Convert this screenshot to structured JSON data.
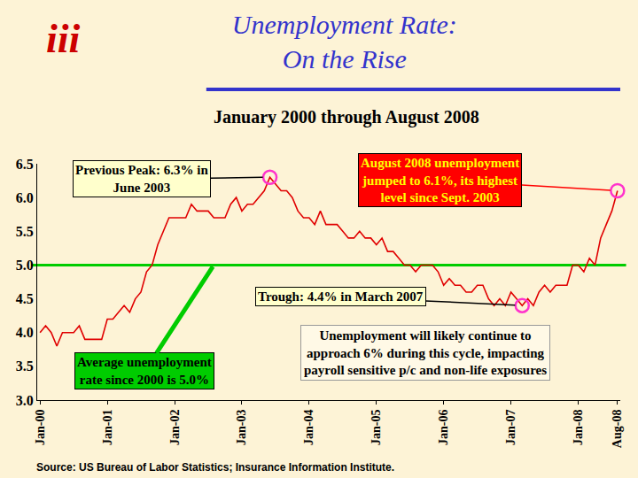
{
  "chart_data": {
    "type": "line",
    "title": [
      "Unemployment Rate:",
      "On the Rise"
    ],
    "subtitle": "January 2000 through August 2008",
    "logo": "iii",
    "source": "Source: US Bureau of Labor Statistics; Insurance Information Institute.",
    "color": "#e00000",
    "grid": false,
    "categories": [
      "Jan-00",
      null,
      null,
      null,
      null,
      null,
      null,
      null,
      null,
      null,
      null,
      null,
      "Jan-01",
      null,
      null,
      null,
      null,
      null,
      null,
      null,
      null,
      null,
      null,
      null,
      "Jan-02",
      null,
      null,
      null,
      null,
      null,
      null,
      null,
      null,
      null,
      null,
      null,
      "Jan-03",
      null,
      null,
      null,
      null,
      null,
      null,
      null,
      null,
      null,
      null,
      null,
      "Jan-04",
      null,
      null,
      null,
      null,
      null,
      null,
      null,
      null,
      null,
      null,
      null,
      "Jan-05",
      null,
      null,
      null,
      null,
      null,
      null,
      null,
      null,
      null,
      null,
      null,
      "Jan-06",
      null,
      null,
      null,
      null,
      null,
      null,
      null,
      null,
      null,
      null,
      null,
      "Jan-07",
      null,
      null,
      null,
      null,
      null,
      null,
      null,
      null,
      null,
      null,
      null,
      "Jan-08",
      null,
      null,
      null,
      null,
      null,
      null,
      "Aug-08"
    ],
    "values": [
      4.0,
      4.1,
      4.0,
      3.8,
      4.0,
      4.0,
      4.0,
      4.1,
      3.9,
      3.9,
      3.9,
      3.9,
      4.2,
      4.2,
      4.3,
      4.4,
      4.3,
      4.5,
      4.6,
      4.9,
      5.0,
      5.3,
      5.5,
      5.7,
      5.7,
      5.7,
      5.7,
      5.9,
      5.8,
      5.8,
      5.8,
      5.7,
      5.7,
      5.7,
      5.9,
      6.0,
      5.8,
      5.9,
      5.9,
      6.0,
      6.1,
      6.3,
      6.2,
      6.1,
      6.1,
      6.0,
      5.8,
      5.7,
      5.7,
      5.6,
      5.8,
      5.6,
      5.6,
      5.6,
      5.5,
      5.4,
      5.4,
      5.5,
      5.4,
      5.4,
      5.3,
      5.4,
      5.2,
      5.2,
      5.1,
      5.0,
      5.0,
      4.9,
      5.0,
      5.0,
      5.0,
      4.9,
      4.7,
      4.8,
      4.7,
      4.7,
      4.6,
      4.6,
      4.7,
      4.7,
      4.5,
      4.4,
      4.5,
      4.4,
      4.6,
      4.5,
      4.4,
      4.5,
      4.4,
      4.6,
      4.7,
      4.6,
      4.7,
      4.7,
      4.7,
      5.0,
      5.0,
      4.9,
      5.1,
      5.0,
      5.4,
      5.6,
      5.8,
      6.1
    ],
    "ylim": [
      3.0,
      6.5
    ],
    "yticks": [
      {
        "value": 3.0,
        "label": "3.0"
      },
      3.5,
      {
        "value": 4.0,
        "label": "4.0"
      },
      4.5,
      {
        "value": 5.0,
        "label": "5.0"
      },
      5.5,
      {
        "value": 6.0,
        "label": "6.0"
      },
      6.5
    ],
    "average": {
      "value": 5.0,
      "color": "#00cc00",
      "label": [
        "Average unemployment",
        "rate since 2000 is 5.0%"
      ]
    },
    "annotations": [
      {
        "text": [
          "Previous Peak: 6.3% in",
          "June 2003"
        ],
        "index": 41,
        "y": 6.3
      },
      {
        "text": [
          "August 2008 unemployment",
          "jumped to 6.1%, its highest",
          "level since Sept. 2003"
        ],
        "index": 103,
        "y": 6.1
      },
      {
        "text": [
          "Trough: 4.4% in March 2007"
        ],
        "index": 86,
        "y": 4.4
      }
    ],
    "note": [
      "Unemployment will likely continue to",
      "approach 6% during this cycle, impacting",
      "payroll sensitive p/c and non-life exposures"
    ]
  }
}
